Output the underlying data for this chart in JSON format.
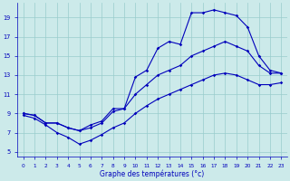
{
  "xlabel": "Graphe des températures (°c)",
  "bg_color": "#cceaea",
  "grid_color": "#99cccc",
  "line_color": "#0000bb",
  "xlim": [
    -0.5,
    23.5
  ],
  "ylim": [
    4.5,
    20.5
  ],
  "yticks": [
    5,
    7,
    9,
    11,
    13,
    15,
    17,
    19
  ],
  "xticks": [
    0,
    1,
    2,
    3,
    4,
    5,
    6,
    7,
    8,
    9,
    10,
    11,
    12,
    13,
    14,
    15,
    16,
    17,
    18,
    19,
    20,
    21,
    22,
    23
  ],
  "line_min_x": [
    0,
    1,
    2,
    3,
    4,
    5,
    6,
    7,
    8,
    9,
    10,
    11,
    12,
    13,
    14,
    15,
    16,
    17,
    18,
    19,
    20,
    21,
    22,
    23
  ],
  "line_min_y": [
    8.8,
    8.5,
    7.8,
    7.0,
    6.5,
    5.8,
    6.2,
    6.8,
    7.5,
    8.0,
    9.0,
    9.8,
    10.5,
    11.0,
    11.5,
    12.0,
    12.5,
    13.0,
    13.2,
    13.0,
    12.5,
    12.0,
    12.0,
    12.2
  ],
  "line_mid_x": [
    0,
    1,
    2,
    3,
    4,
    5,
    6,
    7,
    8,
    9,
    10,
    11,
    12,
    13,
    14,
    15,
    16,
    17,
    18,
    19,
    20,
    21,
    22,
    23
  ],
  "line_mid_y": [
    9.0,
    8.8,
    8.0,
    8.0,
    7.5,
    7.2,
    7.5,
    8.0,
    9.2,
    9.5,
    11.0,
    12.0,
    13.0,
    13.5,
    14.0,
    15.0,
    15.5,
    16.0,
    16.5,
    16.0,
    15.5,
    14.0,
    13.2,
    13.2
  ],
  "line_max_x": [
    0,
    1,
    2,
    3,
    4,
    5,
    6,
    7,
    8,
    9,
    10,
    11,
    12,
    13,
    14,
    15,
    16,
    17,
    18,
    19,
    20,
    21,
    22,
    23
  ],
  "line_max_y": [
    9.0,
    8.8,
    8.0,
    8.0,
    7.5,
    7.2,
    7.8,
    8.2,
    9.5,
    9.5,
    12.8,
    13.5,
    15.8,
    16.5,
    16.2,
    19.5,
    19.5,
    19.8,
    19.5,
    19.2,
    18.0,
    15.0,
    13.5,
    13.2
  ]
}
